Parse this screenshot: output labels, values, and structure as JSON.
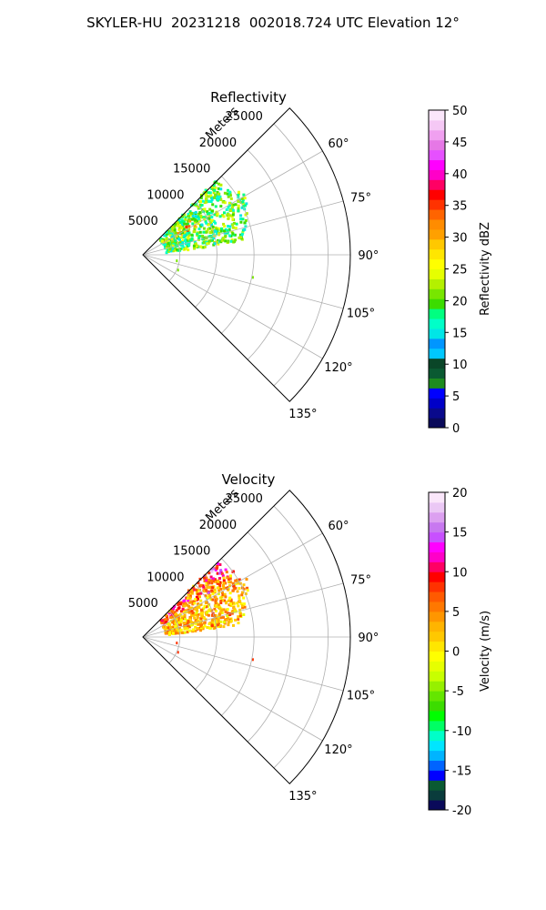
{
  "figure": {
    "suptitle": "SKYLER-HU  20231218  002018.724 UTC Elevation 12°"
  },
  "colors": {
    "grid": "#b0b0b0",
    "frame": "#000000"
  },
  "chart_data": [
    {
      "type": "polar-sector",
      "title": "Reflectivity",
      "range_label": "Meters",
      "range_ticks": [
        5000,
        10000,
        15000,
        20000,
        25000
      ],
      "rmax": 28000,
      "theta_range_deg": [
        45,
        135
      ],
      "theta_ticks_deg": [
        45,
        60,
        75,
        90,
        105,
        120,
        135
      ],
      "theta_tick_labels": [
        "60°",
        "75°",
        "90°",
        "105°",
        "120°",
        "135°"
      ],
      "echo_region": {
        "azimuth_deg": [
          43,
          82
        ],
        "range_m": [
          3000,
          16000
        ]
      },
      "echo_dominant_value": "15-25 dBZ (green/yellow), cores up to ~38 dBZ near 55-60° azimuth, ~7000 m",
      "colorbar": {
        "label": "Reflectivity dBZ",
        "min": 0,
        "max": 50,
        "ticks": [
          0,
          5,
          10,
          15,
          20,
          25,
          30,
          35,
          40,
          45,
          50
        ],
        "colors": [
          "#0a0a5a",
          "#0a0a8c",
          "#0000c8",
          "#0000ff",
          "#1e8c1e",
          "#0a5a32",
          "#0a4628",
          "#00c8ff",
          "#0096ff",
          "#00e6e6",
          "#00ffc8",
          "#00ff80",
          "#3cdc00",
          "#78e600",
          "#b4f000",
          "#e6ff00",
          "#ffff00",
          "#ffe600",
          "#ffc800",
          "#ffa000",
          "#ff8c00",
          "#ff6400",
          "#ff3200",
          "#ff0000",
          "#ff0064",
          "#ff00c8",
          "#ff00ff",
          "#e650ff",
          "#e678e6",
          "#f0a0f0",
          "#f5c8f5",
          "#fae6fa"
        ]
      }
    },
    {
      "type": "polar-sector",
      "title": "Velocity",
      "range_label": "Meters",
      "range_ticks": [
        5000,
        10000,
        15000,
        20000,
        25000
      ],
      "rmax": 28000,
      "theta_range_deg": [
        45,
        135
      ],
      "theta_ticks_deg": [
        45,
        60,
        75,
        90,
        105,
        120,
        135
      ],
      "theta_tick_labels": [
        "60°",
        "75°",
        "90°",
        "105°",
        "120°",
        "135°"
      ],
      "echo_region": {
        "azimuth_deg": [
          43,
          82
        ],
        "range_m": [
          3000,
          16000
        ]
      },
      "echo_dominant_value": "-2 to +8 m/s (yellow/orange), up to ~+15 m/s near 45-55° azimuth",
      "colorbar": {
        "label": "Velocity (m/s)",
        "min": -20,
        "max": 20,
        "ticks": [
          -20,
          -15,
          -10,
          -5,
          0,
          5,
          10,
          15,
          20
        ],
        "colors": [
          "#0a0a5a",
          "#0a3c3c",
          "#0a5a32",
          "#0000ff",
          "#0064ff",
          "#00b4ff",
          "#00e6ff",
          "#00ffc8",
          "#00ff64",
          "#00ff00",
          "#3cdc00",
          "#64e600",
          "#96f000",
          "#c8ff00",
          "#e6ff00",
          "#ffff00",
          "#ffe600",
          "#ffc800",
          "#ffb400",
          "#ff9600",
          "#ff7800",
          "#ff5a00",
          "#ff3200",
          "#ff0000",
          "#ff0064",
          "#ff00c8",
          "#ff00ff",
          "#c850ff",
          "#c878f0",
          "#dca0f0",
          "#ebc8f5",
          "#fae6fa"
        ]
      }
    }
  ]
}
